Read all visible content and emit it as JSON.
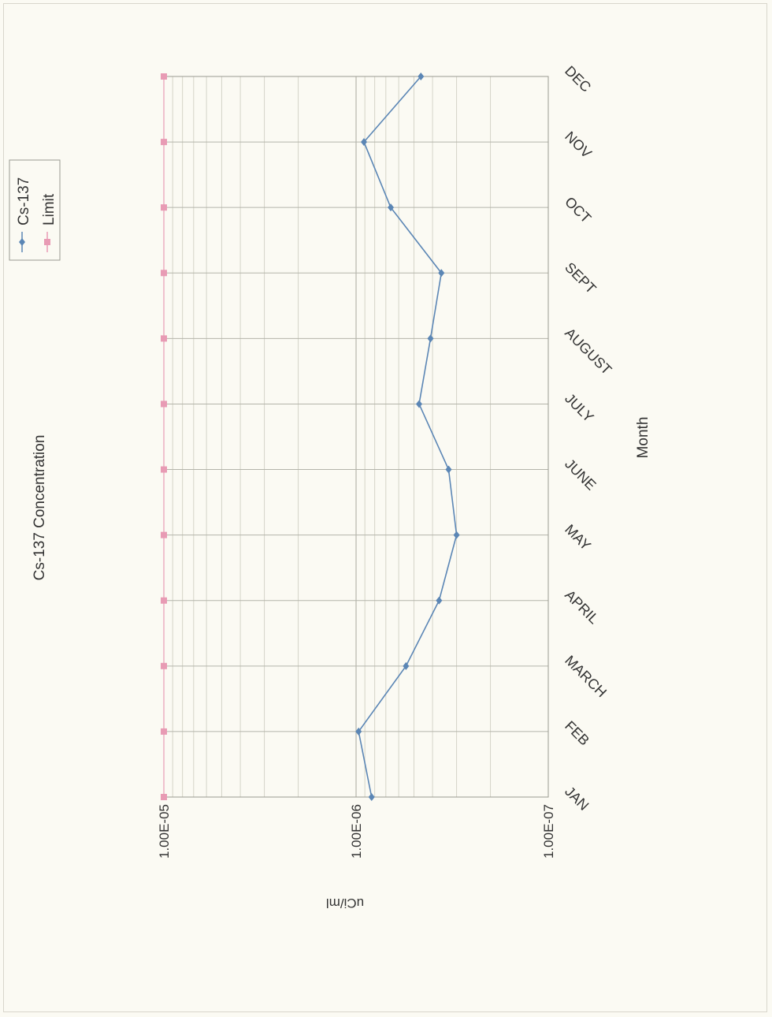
{
  "chart_data": {
    "type": "line",
    "title": "Cs-137 Concentration",
    "xlabel": "Month",
    "ylabel": "uCi/ml",
    "y_scale": "log",
    "ylim": [
      1e-07,
      1e-05
    ],
    "y_ticks": [
      "1.00E-05",
      "1.00E-06",
      "1.00E-07"
    ],
    "categories": [
      "JAN",
      "FEB",
      "MARCH",
      "APRIL",
      "MAY",
      "JUNE",
      "JULY",
      "AUGUST",
      "SEPT",
      "OCT",
      "NOV",
      "DEC"
    ],
    "series": [
      {
        "name": "Cs-137",
        "color": "#5b86b5",
        "marker": "diamond",
        "values": [
          8.3e-07,
          9.7e-07,
          5.5e-07,
          3.7e-07,
          3e-07,
          3.3e-07,
          4.7e-07,
          4.1e-07,
          3.6e-07,
          6.6e-07,
          9.1e-07,
          4.6e-07
        ]
      },
      {
        "name": "Limit",
        "color": "#e89bb4",
        "marker": "square",
        "values": [
          1e-05,
          1e-05,
          1e-05,
          1e-05,
          1e-05,
          1e-05,
          1e-05,
          1e-05,
          1e-05,
          1e-05,
          1e-05,
          1e-05
        ]
      }
    ],
    "grid": true,
    "legend_position": "top-left",
    "orientation": "rotated 90 degrees clockwise"
  }
}
